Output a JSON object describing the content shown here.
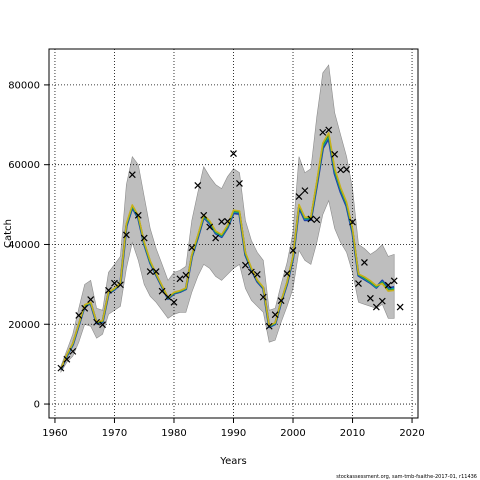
{
  "chart_data": {
    "type": "line",
    "title": "",
    "xlabel": "Years",
    "ylabel": "Catch",
    "xlim": [
      1959,
      2021
    ],
    "ylim": [
      -3500,
      89000
    ],
    "x_ticks": [
      1960,
      1970,
      1980,
      1990,
      2000,
      2010,
      2020
    ],
    "y_ticks": [
      0,
      20000,
      40000,
      60000,
      80000
    ],
    "grid": true,
    "legend": "none",
    "footnote": "stockassessment.org, sam-tmb-fsaithe-2017-01, r11436",
    "colors": {
      "band": "#bebebe",
      "band_edge": "#8c8c8c",
      "series": [
        "#1f3fa8",
        "#11a6a6",
        "#2b9a2b",
        "#c9b11a"
      ],
      "observed": "#000000"
    },
    "years": [
      1961,
      1962,
      1963,
      1964,
      1965,
      1966,
      1967,
      1968,
      1969,
      1970,
      1971,
      1972,
      1973,
      1974,
      1975,
      1976,
      1977,
      1978,
      1979,
      1980,
      1981,
      1982,
      1983,
      1984,
      1985,
      1986,
      1987,
      1988,
      1989,
      1990,
      1991,
      1992,
      1993,
      1994,
      1995,
      1996,
      1997,
      1998,
      1999,
      2000,
      2001,
      2002,
      2003,
      2004,
      2005,
      2006,
      2007,
      2008,
      2009,
      2010,
      2011,
      2012,
      2013,
      2014,
      2015,
      2016,
      2017
    ],
    "band_upper": [
      9500,
      13500,
      17500,
      24000,
      30000,
      31000,
      24000,
      23500,
      33000,
      35000,
      37000,
      55000,
      62000,
      60000,
      52000,
      44000,
      39000,
      35000,
      31000,
      33000,
      33500,
      34500,
      46000,
      53000,
      59500,
      57000,
      55000,
      54000,
      57000,
      59000,
      58000,
      46000,
      41000,
      38000,
      36000,
      23500,
      24000,
      30000,
      35500,
      43000,
      62000,
      58000,
      59000,
      72000,
      83000,
      85000,
      73000,
      67500,
      62000,
      54000,
      40000,
      39000,
      37500,
      38500,
      40000,
      37000,
      37500
    ],
    "band_lower": [
      8000,
      10500,
      12000,
      15500,
      20000,
      19500,
      16500,
      17500,
      22500,
      23500,
      24500,
      34000,
      40500,
      36000,
      30000,
      27000,
      25500,
      23500,
      21500,
      22500,
      23000,
      23000,
      28000,
      32000,
      35000,
      34000,
      32000,
      31000,
      32500,
      34000,
      35000,
      29000,
      26000,
      24500,
      23000,
      15500,
      16000,
      20500,
      24500,
      29000,
      38500,
      36000,
      35000,
      40500,
      47500,
      51000,
      44000,
      40500,
      38000,
      33000,
      25500,
      25000,
      24500,
      24000,
      25000,
      21500,
      21500
    ],
    "series": [
      {
        "values": [
          8600,
          12100,
          14900,
          19800,
          24600,
          25200,
          20300,
          20600,
          27700,
          28700,
          30100,
          44600,
          49300,
          46600,
          40100,
          35400,
          32400,
          29400,
          26400,
          27700,
          28100,
          28800,
          36900,
          41700,
          46800,
          45300,
          42800,
          41900,
          44200,
          47900,
          47700,
          37400,
          33700,
          30700,
          29000,
          19300,
          20100,
          25500,
          30200,
          36500,
          49300,
          46100,
          46200,
          54800,
          64100,
          66700,
          57800,
          53200,
          49600,
          43000,
          32200,
          31300,
          30400,
          29200,
          30900,
          29000,
          29300
        ]
      },
      {
        "values": [
          8700,
          12200,
          15000,
          19900,
          24700,
          25300,
          20400,
          20700,
          27800,
          28800,
          30200,
          44800,
          49500,
          46800,
          40200,
          35500,
          32500,
          29500,
          26500,
          27800,
          28200,
          28900,
          37000,
          41900,
          47000,
          45500,
          43000,
          42100,
          44400,
          48200,
          48000,
          37600,
          33900,
          30900,
          29100,
          19400,
          20200,
          25600,
          30400,
          36700,
          49600,
          46400,
          46500,
          55200,
          64600,
          67200,
          58300,
          53700,
          50000,
          43400,
          32400,
          31500,
          30500,
          29300,
          30600,
          28700,
          29000
        ]
      },
      {
        "values": [
          8750,
          12300,
          15100,
          20000,
          24800,
          25400,
          20500,
          20800,
          27900,
          28900,
          30300,
          45000,
          49700,
          47000,
          40400,
          35700,
          32600,
          29600,
          26600,
          27900,
          28300,
          29000,
          37200,
          42100,
          47200,
          45700,
          43200,
          42300,
          44600,
          48400,
          48200,
          37800,
          34000,
          31000,
          29200,
          19500,
          20300,
          25700,
          30500,
          36900,
          49800,
          46600,
          46700,
          55500,
          65000,
          67600,
          58700,
          54000,
          50300,
          43700,
          32500,
          31700,
          30700,
          29500,
          30400,
          28500,
          28700
        ]
      },
      {
        "values": [
          8800,
          12400,
          15200,
          20100,
          24900,
          25500,
          20600,
          20900,
          28000,
          29000,
          30400,
          45200,
          49900,
          47200,
          40600,
          35900,
          32700,
          29700,
          26700,
          28000,
          28400,
          29100,
          37400,
          42300,
          47400,
          45900,
          43400,
          42500,
          44800,
          48600,
          48400,
          38000,
          34100,
          31100,
          29300,
          19600,
          20400,
          25800,
          30600,
          37100,
          50000,
          46800,
          46900,
          55800,
          65400,
          68000,
          59100,
          54300,
          50600,
          44000,
          32600,
          31900,
          30900,
          29700,
          30200,
          28300,
          28500
        ]
      }
    ],
    "observed": {
      "x": [
        1961,
        1962,
        1963,
        1964,
        1965,
        1966,
        1967,
        1968,
        1969,
        1970,
        1971,
        1972,
        1973,
        1974,
        1975,
        1976,
        1977,
        1978,
        1979,
        1980,
        1981,
        1982,
        1983,
        1984,
        1985,
        1986,
        1987,
        1988,
        1989,
        1990,
        1991,
        1992,
        1993,
        1994,
        1995,
        1996,
        1997,
        1998,
        1999,
        2000,
        2001,
        2002,
        2003,
        2004,
        2005,
        2006,
        2007,
        2008,
        2009,
        2010,
        2011,
        2012,
        2013,
        2014,
        2015,
        2016,
        2017,
        2018
      ],
      "y": [
        9000,
        11200,
        13200,
        22200,
        24000,
        26200,
        20500,
        19900,
        28500,
        30300,
        29900,
        42400,
        57500,
        47300,
        41600,
        33200,
        33200,
        28300,
        26800,
        25500,
        31400,
        32300,
        39200,
        54800,
        47300,
        44400,
        41600,
        45700,
        45800,
        62800,
        55300,
        34800,
        33100,
        32500,
        26800,
        19500,
        22400,
        25900,
        32700,
        38500,
        52000,
        53500,
        46400,
        46200,
        68100,
        68700,
        62600,
        58700,
        58800,
        45600,
        30200,
        35500,
        26500,
        24300,
        25800,
        29800,
        30900,
        24300
      ]
    }
  }
}
